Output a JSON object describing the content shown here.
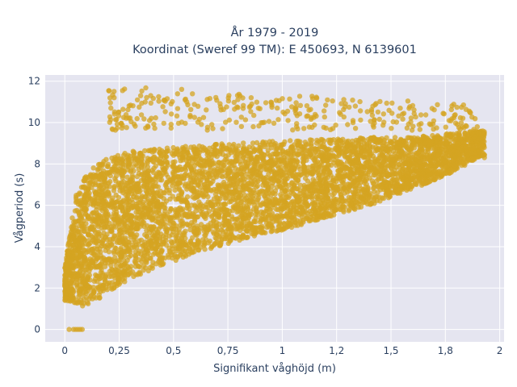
{
  "chart_data": {
    "type": "scatter",
    "title": "År 1979 - 2019",
    "subtitle": "Koordinat (Sweref 99 TM): E 450693, N 6139601",
    "xlabel": "Signifikant våghöjd (m)",
    "ylabel": "Vågperiod (s)",
    "xlim": [
      -0.09,
      2.02
    ],
    "ylim": [
      -0.6,
      12.3
    ],
    "x_ticks": [
      0,
      0.25,
      0.5,
      0.75,
      1,
      1.25,
      1.5,
      1.75,
      2
    ],
    "x_tick_labels": [
      "0",
      "0,25",
      "0,5",
      "0,75",
      "1",
      "1,2",
      "1,5",
      "1,8",
      "2"
    ],
    "y_ticks": [
      0,
      2,
      4,
      6,
      8,
      10,
      12
    ],
    "y_tick_labels": [
      "0",
      "2",
      "4",
      "6",
      "8",
      "10",
      "12"
    ],
    "grid": true,
    "background": "#e5e5f0",
    "marker_color": "#d4a421",
    "point_band": {
      "x": [
        0.0,
        0.05,
        0.1,
        0.15,
        0.2,
        0.25,
        0.3,
        0.4,
        0.5,
        0.6,
        0.7,
        0.8,
        0.9,
        1.0,
        1.1,
        1.2,
        1.3,
        1.4,
        1.5,
        1.6,
        1.7,
        1.8,
        1.9
      ],
      "y_low": [
        1.4,
        1.2,
        1.1,
        1.3,
        1.8,
        2.1,
        2.4,
        2.9,
        3.3,
        3.7,
        4.0,
        4.3,
        4.6,
        4.8,
        5.1,
        5.4,
        5.7,
        6.0,
        6.4,
        6.8,
        7.2,
        7.7,
        8.3
      ],
      "y_high": [
        3.0,
        6.5,
        7.5,
        8.0,
        8.3,
        8.5,
        8.6,
        8.7,
        8.8,
        8.9,
        9.0,
        9.0,
        9.1,
        9.1,
        9.2,
        9.2,
        9.2,
        9.3,
        9.3,
        9.3,
        9.4,
        9.5,
        9.6
      ]
    },
    "outlier_band": {
      "x_range": [
        0.2,
        1.9
      ],
      "y_range": [
        9.6,
        11.8
      ]
    },
    "zero_points": {
      "x": [
        0.02,
        0.04,
        0.05,
        0.06,
        0.07,
        0.08
      ],
      "y": [
        0,
        0,
        0,
        0,
        0,
        0
      ]
    }
  }
}
